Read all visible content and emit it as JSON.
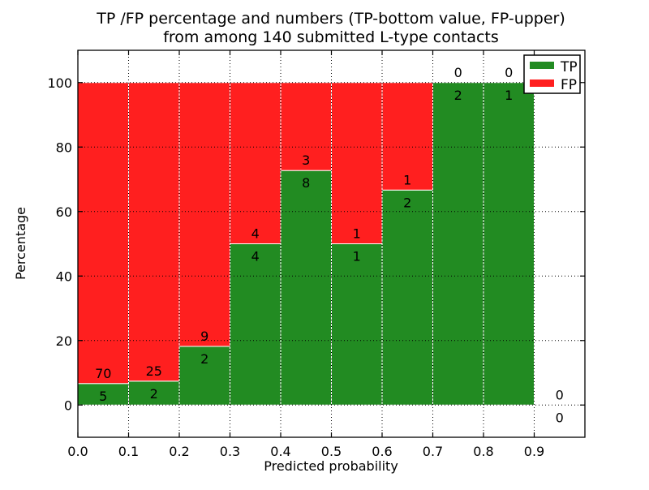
{
  "chart_data": {
    "type": "bar",
    "stacked": true,
    "normalized_to_percent": true,
    "title": "TP /FP percentage and numbers (TP-bottom value, FP-upper)\nfrom among 140 submitted L-type contacts",
    "title_lines": [
      "TP /FP percentage and numbers (TP-bottom value, FP-upper)",
      "from among 140 submitted L-type contacts"
    ],
    "xlabel": "Predicted probability",
    "ylabel": "Percentage",
    "xlim": [
      0.0,
      1.0
    ],
    "ylim": [
      -10,
      110
    ],
    "xticks": [
      "0.0",
      "0.1",
      "0.2",
      "0.3",
      "0.4",
      "0.5",
      "0.6",
      "0.7",
      "0.8",
      "0.9"
    ],
    "yticks": [
      0,
      20,
      40,
      60,
      80,
      100
    ],
    "grid": "dotted",
    "grid_color": "#000000",
    "bar_edge_color": "#ffffff",
    "legend": {
      "position": "upper-right",
      "entries": [
        {
          "label": "TP",
          "color": "#228b22"
        },
        {
          "label": "FP",
          "color": "#ff1f1f"
        }
      ]
    },
    "bins": [
      {
        "range": [
          0.0,
          0.1
        ],
        "tp": 5,
        "fp": 70
      },
      {
        "range": [
          0.1,
          0.2
        ],
        "tp": 2,
        "fp": 25
      },
      {
        "range": [
          0.2,
          0.3
        ],
        "tp": 2,
        "fp": 9
      },
      {
        "range": [
          0.3,
          0.4
        ],
        "tp": 4,
        "fp": 4
      },
      {
        "range": [
          0.4,
          0.5
        ],
        "tp": 8,
        "fp": 3
      },
      {
        "range": [
          0.5,
          0.6
        ],
        "tp": 1,
        "fp": 1
      },
      {
        "range": [
          0.6,
          0.7
        ],
        "tp": 2,
        "fp": 1
      },
      {
        "range": [
          0.7,
          0.8
        ],
        "tp": 2,
        "fp": 0
      },
      {
        "range": [
          0.8,
          0.9
        ],
        "tp": 1,
        "fp": 0
      },
      {
        "range": [
          0.9,
          1.0
        ],
        "tp": 0,
        "fp": 0
      }
    ]
  }
}
